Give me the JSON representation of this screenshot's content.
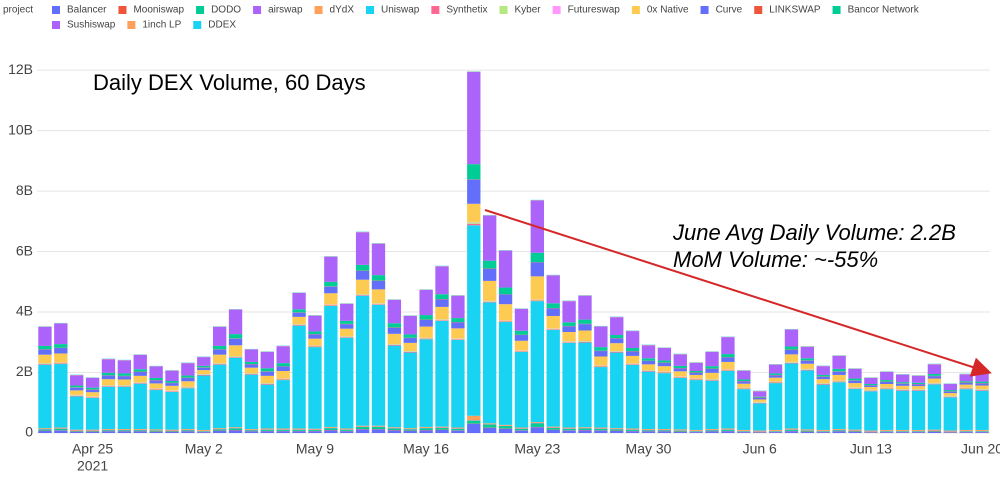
{
  "chart_data": {
    "type": "stacked_bar",
    "title": "Daily DEX Volume, 60 Days",
    "annotations": [
      "June Avg Daily Volume: 2.2B",
      "MoM Volume: ~-55%"
    ],
    "legend_title": "project",
    "x": [
      "2021-04-22",
      "2021-04-23",
      "2021-04-24",
      "2021-04-25",
      "2021-04-26",
      "2021-04-27",
      "2021-04-28",
      "2021-04-29",
      "2021-04-30",
      "2021-05-01",
      "2021-05-02",
      "2021-05-03",
      "2021-05-04",
      "2021-05-05",
      "2021-05-06",
      "2021-05-07",
      "2021-05-08",
      "2021-05-09",
      "2021-05-10",
      "2021-05-11",
      "2021-05-12",
      "2021-05-13",
      "2021-05-14",
      "2021-05-15",
      "2021-05-16",
      "2021-05-17",
      "2021-05-18",
      "2021-05-19",
      "2021-05-20",
      "2021-05-21",
      "2021-05-22",
      "2021-05-23",
      "2021-05-24",
      "2021-05-25",
      "2021-05-26",
      "2021-05-27",
      "2021-05-28",
      "2021-05-29",
      "2021-05-30",
      "2021-05-31",
      "2021-06-01",
      "2021-06-02",
      "2021-06-03",
      "2021-06-04",
      "2021-06-05",
      "2021-06-06",
      "2021-06-07",
      "2021-06-08",
      "2021-06-09",
      "2021-06-10",
      "2021-06-11",
      "2021-06-12",
      "2021-06-13",
      "2021-06-14",
      "2021-06-15",
      "2021-06-16",
      "2021-06-17",
      "2021-06-18",
      "2021-06-19",
      "2021-06-20"
    ],
    "xticks": [
      {
        "value": "2021-04-25",
        "label": "Apr 25",
        "sublabel": "2021"
      },
      {
        "value": "2021-05-02",
        "label": "May 2"
      },
      {
        "value": "2021-05-09",
        "label": "May 9"
      },
      {
        "value": "2021-05-16",
        "label": "May 16"
      },
      {
        "value": "2021-05-23",
        "label": "May 23"
      },
      {
        "value": "2021-05-30",
        "label": "May 30"
      },
      {
        "value": "2021-06-06",
        "label": "Jun 6"
      },
      {
        "value": "2021-06-13",
        "label": "Jun 13"
      },
      {
        "value": "2021-06-20",
        "label": "Jun 20"
      }
    ],
    "ylim": [
      0,
      12.5
    ],
    "yticks": [
      0,
      {
        "value": 2,
        "label": "2B"
      },
      {
        "value": 4,
        "label": "4B"
      },
      {
        "value": 6,
        "label": "6B"
      },
      {
        "value": 8,
        "label": "8B"
      },
      {
        "value": 10,
        "label": "10B"
      },
      {
        "value": 12,
        "label": "12B"
      }
    ],
    "grid": true,
    "series": [
      {
        "name": "Balancer",
        "color": "#636efa",
        "values": [
          0.07,
          0.08,
          0.04,
          0.04,
          0.05,
          0.05,
          0.05,
          0.04,
          0.04,
          0.05,
          0.03,
          0.07,
          0.09,
          0.05,
          0.06,
          0.06,
          0.06,
          0.06,
          0.09,
          0.06,
          0.12,
          0.12,
          0.09,
          0.07,
          0.09,
          0.1,
          0.08,
          0.3,
          0.17,
          0.14,
          0.08,
          0.19,
          0.1,
          0.08,
          0.09,
          0.08,
          0.07,
          0.06,
          0.05,
          0.05,
          0.04,
          0.03,
          0.05,
          0.06,
          0.03,
          0.02,
          0.03,
          0.06,
          0.04,
          0.03,
          0.05,
          0.04,
          0.02,
          0.03,
          0.03,
          0.03,
          0.04,
          0.02,
          0.03,
          0.03
        ]
      },
      {
        "name": "Mooniswap",
        "color": "#ef553b",
        "values": [
          0.01,
          0.01,
          0.01,
          0.01,
          0.01,
          0.01,
          0.01,
          0.01,
          0.01,
          0.01,
          0.01,
          0.01,
          0.01,
          0.01,
          0.01,
          0.01,
          0.01,
          0.01,
          0.01,
          0.01,
          0.01,
          0.01,
          0.01,
          0.01,
          0.01,
          0.01,
          0.01,
          0.01,
          0.01,
          0.01,
          0.01,
          0.01,
          0.01,
          0.01,
          0.01,
          0.01,
          0.01,
          0.01,
          0.01,
          0.01,
          0.01,
          0.01,
          0.01,
          0.01,
          0.01,
          0.01,
          0.01,
          0.01,
          0.01,
          0.01,
          0.01,
          0.01,
          0.01,
          0.01,
          0.01,
          0.01,
          0.01,
          0.01,
          0.01,
          0.01
        ]
      },
      {
        "name": "DODO",
        "color": "#00cc96",
        "values": [
          0.04,
          0.05,
          0.02,
          0.02,
          0.03,
          0.03,
          0.03,
          0.03,
          0.02,
          0.03,
          0.02,
          0.04,
          0.05,
          0.03,
          0.04,
          0.04,
          0.04,
          0.03,
          0.06,
          0.04,
          0.07,
          0.07,
          0.05,
          0.04,
          0.06,
          0.06,
          0.05,
          0.1,
          0.1,
          0.08,
          0.05,
          0.12,
          0.06,
          0.05,
          0.05,
          0.05,
          0.04,
          0.04,
          0.03,
          0.03,
          0.03,
          0.02,
          0.03,
          0.04,
          0.02,
          0.01,
          0.02,
          0.04,
          0.03,
          0.02,
          0.03,
          0.02,
          0.01,
          0.02,
          0.02,
          0.02,
          0.02,
          0.01,
          0.02,
          0.02
        ]
      },
      {
        "name": "airswap",
        "color": "#ab63fa",
        "values": [
          0.01,
          0.01,
          0.01,
          0.01,
          0.01,
          0.01,
          0.01,
          0.01,
          0.01,
          0.01,
          0.01,
          0.01,
          0.01,
          0.01,
          0.01,
          0.01,
          0.01,
          0.01,
          0.01,
          0.01,
          0.01,
          0.01,
          0.01,
          0.01,
          0.01,
          0.01,
          0.01,
          0.01,
          0.01,
          0.01,
          0.01,
          0.01,
          0.01,
          0.01,
          0.01,
          0.01,
          0.01,
          0.01,
          0.01,
          0.01,
          0.01,
          0.01,
          0.01,
          0.01,
          0.01,
          0.01,
          0.01,
          0.01,
          0.01,
          0.01,
          0.01,
          0.01,
          0.01,
          0.01,
          0.01,
          0.01,
          0.01,
          0.01,
          0.01,
          0.01
        ]
      },
      {
        "name": "dYdX",
        "color": "#ffa15a",
        "values": [
          0.03,
          0.03,
          0.03,
          0.03,
          0.03,
          0.03,
          0.03,
          0.03,
          0.03,
          0.03,
          0.03,
          0.03,
          0.03,
          0.03,
          0.03,
          0.03,
          0.03,
          0.03,
          0.03,
          0.03,
          0.03,
          0.03,
          0.03,
          0.03,
          0.03,
          0.03,
          0.03,
          0.15,
          0.03,
          0.03,
          0.03,
          0.03,
          0.03,
          0.03,
          0.03,
          0.03,
          0.03,
          0.03,
          0.03,
          0.03,
          0.03,
          0.03,
          0.03,
          0.03,
          0.03,
          0.03,
          0.03,
          0.03,
          0.03,
          0.03,
          0.03,
          0.03,
          0.03,
          0.03,
          0.03,
          0.03,
          0.03,
          0.03,
          0.03,
          0.03
        ]
      },
      {
        "name": "Uniswap",
        "color": "#19d3f3",
        "values": [
          2.1,
          2.1,
          1.1,
          1.05,
          1.4,
          1.4,
          1.5,
          1.3,
          1.25,
          1.35,
          1.8,
          2.1,
          2.3,
          1.8,
          1.45,
          1.6,
          3.4,
          2.7,
          4.0,
          3.0,
          4.3,
          4.0,
          2.7,
          2.5,
          2.9,
          3.5,
          2.9,
          6.3,
          4.0,
          3.4,
          2.5,
          4.0,
          3.2,
          2.8,
          2.8,
          2.0,
          2.5,
          2.1,
          1.9,
          1.85,
          1.7,
          1.65,
          1.6,
          1.9,
          1.35,
          0.9,
          1.55,
          2.15,
          1.95,
          1.5,
          1.55,
          1.35,
          1.3,
          1.35,
          1.3,
          1.3,
          1.5,
          1.1,
          1.35,
          1.3
        ]
      },
      {
        "name": "Synthetix",
        "color": "#ff6692",
        "values": [
          0.02,
          0.02,
          0.02,
          0.02,
          0.02,
          0.02,
          0.02,
          0.02,
          0.02,
          0.02,
          0.02,
          0.02,
          0.02,
          0.02,
          0.02,
          0.02,
          0.02,
          0.02,
          0.02,
          0.02,
          0.02,
          0.02,
          0.02,
          0.02,
          0.02,
          0.02,
          0.02,
          0.05,
          0.02,
          0.02,
          0.02,
          0.02,
          0.02,
          0.02,
          0.02,
          0.02,
          0.02,
          0.02,
          0.02,
          0.02,
          0.02,
          0.02,
          0.02,
          0.02,
          0.02,
          0.02,
          0.02,
          0.02,
          0.02,
          0.02,
          0.02,
          0.02,
          0.02,
          0.02,
          0.02,
          0.02,
          0.02,
          0.02,
          0.02,
          0.02
        ]
      },
      {
        "name": "Kyber",
        "color": "#b6e880",
        "values": [
          0.02,
          0.02,
          0.02,
          0.02,
          0.02,
          0.02,
          0.02,
          0.02,
          0.02,
          0.02,
          0.02,
          0.02,
          0.02,
          0.02,
          0.02,
          0.02,
          0.02,
          0.02,
          0.02,
          0.02,
          0.02,
          0.02,
          0.02,
          0.02,
          0.02,
          0.02,
          0.02,
          0.05,
          0.02,
          0.02,
          0.02,
          0.02,
          0.02,
          0.02,
          0.02,
          0.02,
          0.02,
          0.02,
          0.02,
          0.02,
          0.02,
          0.02,
          0.02,
          0.02,
          0.02,
          0.02,
          0.02,
          0.02,
          0.02,
          0.02,
          0.02,
          0.02,
          0.02,
          0.02,
          0.02,
          0.02,
          0.02,
          0.02,
          0.02,
          0.02
        ]
      },
      {
        "name": "Futureswap",
        "color": "#ff97ff",
        "values": [
          0.01,
          0.01,
          0.01,
          0.01,
          0.01,
          0.01,
          0.01,
          0.01,
          0.01,
          0.01,
          0.01,
          0.01,
          0.01,
          0.01,
          0.01,
          0.01,
          0.01,
          0.01,
          0.01,
          0.01,
          0.01,
          0.01,
          0.01,
          0.01,
          0.01,
          0.01,
          0.01,
          0.01,
          0.01,
          0.01,
          0.01,
          0.01,
          0.01,
          0.01,
          0.01,
          0.01,
          0.01,
          0.01,
          0.01,
          0.01,
          0.01,
          0.01,
          0.01,
          0.01,
          0.01,
          0.01,
          0.01,
          0.01,
          0.01,
          0.01,
          0.01,
          0.01,
          0.01,
          0.01,
          0.01,
          0.01,
          0.01,
          0.01,
          0.01,
          0.01
        ]
      },
      {
        "name": "0x Native",
        "color": "#fecb52",
        "values": [
          0.28,
          0.3,
          0.15,
          0.14,
          0.2,
          0.19,
          0.21,
          0.17,
          0.15,
          0.18,
          0.13,
          0.28,
          0.36,
          0.18,
          0.24,
          0.25,
          0.24,
          0.23,
          0.37,
          0.25,
          0.48,
          0.46,
          0.34,
          0.27,
          0.37,
          0.41,
          0.33,
          0.6,
          0.66,
          0.54,
          0.32,
          0.77,
          0.41,
          0.31,
          0.35,
          0.3,
          0.26,
          0.25,
          0.19,
          0.18,
          0.17,
          0.12,
          0.21,
          0.25,
          0.13,
          0.08,
          0.13,
          0.25,
          0.17,
          0.13,
          0.19,
          0.14,
          0.09,
          0.12,
          0.11,
          0.1,
          0.14,
          0.09,
          0.1,
          0.12
        ]
      },
      {
        "name": "Curve",
        "color": "#636efa",
        "values": [
          0.17,
          0.18,
          0.09,
          0.08,
          0.12,
          0.11,
          0.13,
          0.1,
          0.09,
          0.11,
          0.08,
          0.17,
          0.22,
          0.11,
          0.14,
          0.15,
          0.14,
          0.14,
          0.22,
          0.15,
          0.29,
          0.28,
          0.2,
          0.16,
          0.22,
          0.25,
          0.2,
          0.8,
          0.4,
          0.32,
          0.19,
          0.46,
          0.25,
          0.19,
          0.21,
          0.18,
          0.16,
          0.15,
          0.11,
          0.11,
          0.1,
          0.07,
          0.13,
          0.15,
          0.08,
          0.05,
          0.08,
          0.15,
          0.1,
          0.08,
          0.11,
          0.08,
          0.05,
          0.07,
          0.07,
          0.06,
          0.08,
          0.05,
          0.06,
          0.07
        ]
      },
      {
        "name": "LINKSWAP",
        "color": "#ef553b",
        "values": [
          0.01,
          0.01,
          0.01,
          0.01,
          0.01,
          0.01,
          0.01,
          0.01,
          0.01,
          0.01,
          0.01,
          0.01,
          0.01,
          0.01,
          0.01,
          0.01,
          0.01,
          0.01,
          0.01,
          0.01,
          0.01,
          0.01,
          0.01,
          0.01,
          0.01,
          0.01,
          0.01,
          0.01,
          0.01,
          0.01,
          0.01,
          0.01,
          0.01,
          0.01,
          0.01,
          0.01,
          0.01,
          0.01,
          0.01,
          0.01,
          0.01,
          0.01,
          0.01,
          0.01,
          0.01,
          0.01,
          0.01,
          0.01,
          0.01,
          0.01,
          0.01,
          0.01,
          0.01,
          0.01,
          0.01,
          0.01,
          0.01,
          0.01,
          0.01,
          0.01
        ]
      },
      {
        "name": "Bancor Network",
        "color": "#00cc96",
        "values": [
          0.11,
          0.12,
          0.06,
          0.06,
          0.08,
          0.08,
          0.08,
          0.07,
          0.06,
          0.07,
          0.05,
          0.11,
          0.14,
          0.07,
          0.1,
          0.1,
          0.1,
          0.09,
          0.15,
          0.1,
          0.19,
          0.18,
          0.14,
          0.11,
          0.15,
          0.16,
          0.13,
          0.5,
          0.26,
          0.22,
          0.13,
          0.31,
          0.16,
          0.12,
          0.14,
          0.12,
          0.1,
          0.1,
          0.08,
          0.07,
          0.07,
          0.05,
          0.08,
          0.1,
          0.05,
          0.03,
          0.05,
          0.1,
          0.07,
          0.05,
          0.08,
          0.06,
          0.04,
          0.05,
          0.04,
          0.04,
          0.06,
          0.04,
          0.04,
          0.05
        ]
      },
      {
        "name": "Sushiswap",
        "color": "#ab63fa",
        "values": [
          0.63,
          0.68,
          0.34,
          0.32,
          0.45,
          0.43,
          0.47,
          0.38,
          0.34,
          0.41,
          0.29,
          0.63,
          0.81,
          0.41,
          0.54,
          0.56,
          0.54,
          0.52,
          0.83,
          0.56,
          1.08,
          1.04,
          0.77,
          0.61,
          0.83,
          0.92,
          0.74,
          3.05,
          1.49,
          1.22,
          0.72,
          1.73,
          0.92,
          0.7,
          0.79,
          0.68,
          0.59,
          0.56,
          0.43,
          0.41,
          0.38,
          0.27,
          0.47,
          0.56,
          0.29,
          0.18,
          0.29,
          0.56,
          0.38,
          0.29,
          0.43,
          0.32,
          0.2,
          0.27,
          0.25,
          0.23,
          0.32,
          0.2,
          0.23,
          0.27
        ]
      },
      {
        "name": "1inch LP",
        "color": "#ffa15a",
        "values": [
          0.01,
          0.01,
          0.01,
          0.01,
          0.01,
          0.01,
          0.01,
          0.01,
          0.01,
          0.01,
          0.01,
          0.01,
          0.01,
          0.01,
          0.01,
          0.01,
          0.01,
          0.01,
          0.01,
          0.01,
          0.01,
          0.01,
          0.01,
          0.01,
          0.01,
          0.01,
          0.01,
          0.01,
          0.01,
          0.01,
          0.01,
          0.01,
          0.01,
          0.01,
          0.01,
          0.01,
          0.01,
          0.01,
          0.01,
          0.01,
          0.01,
          0.01,
          0.01,
          0.01,
          0.01,
          0.01,
          0.01,
          0.01,
          0.01,
          0.01,
          0.01,
          0.01,
          0.01,
          0.01,
          0.01,
          0.01,
          0.01,
          0.01,
          0.01,
          0.01
        ]
      },
      {
        "name": "DDEX",
        "color": "#19d3f3",
        "values": [
          0.01,
          0.01,
          0.01,
          0.01,
          0.01,
          0.01,
          0.01,
          0.01,
          0.01,
          0.01,
          0.01,
          0.01,
          0.01,
          0.01,
          0.01,
          0.01,
          0.01,
          0.01,
          0.01,
          0.01,
          0.01,
          0.01,
          0.01,
          0.01,
          0.01,
          0.01,
          0.01,
          0.01,
          0.01,
          0.01,
          0.01,
          0.01,
          0.01,
          0.01,
          0.01,
          0.01,
          0.01,
          0.01,
          0.01,
          0.01,
          0.01,
          0.01,
          0.01,
          0.01,
          0.01,
          0.01,
          0.01,
          0.01,
          0.01,
          0.01,
          0.01,
          0.01,
          0.01,
          0.01,
          0.01,
          0.01,
          0.01,
          0.01,
          0.01,
          0.01
        ]
      }
    ]
  }
}
